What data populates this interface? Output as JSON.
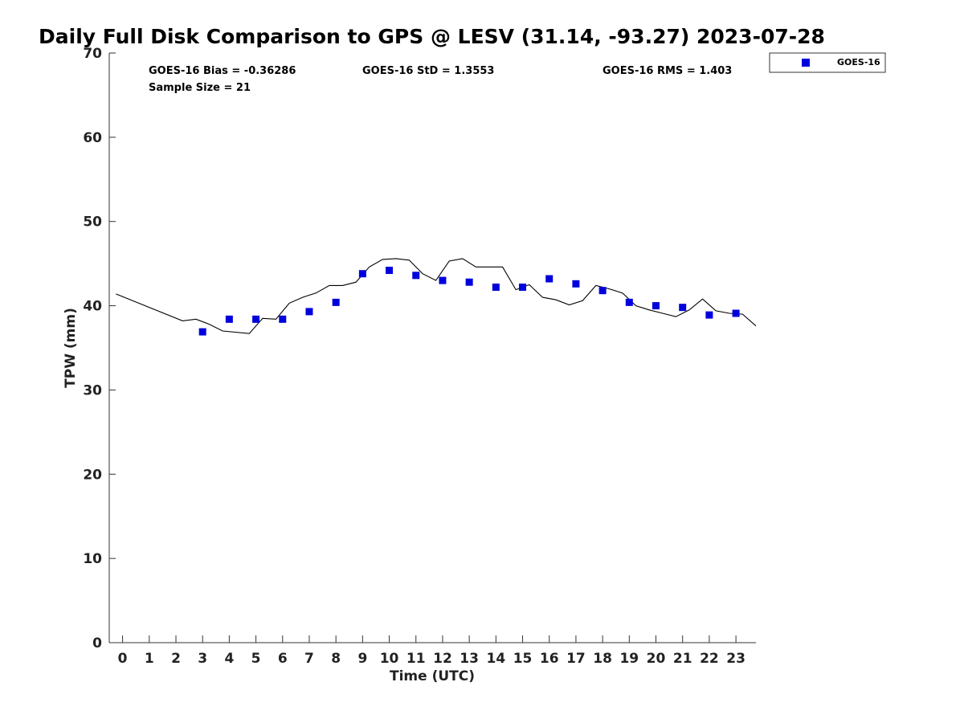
{
  "chart_data": {
    "type": "scatter",
    "title": "Daily Full Disk Comparison to GPS @ LESV (31.14, -93.27) 2023-07-28",
    "xlabel": "Time (UTC)",
    "ylabel": "TPW (mm)",
    "xlim": [
      -0.5,
      23.75
    ],
    "ylim": [
      0,
      70
    ],
    "x_ticks": [
      0,
      1,
      2,
      3,
      4,
      5,
      6,
      7,
      8,
      9,
      10,
      11,
      12,
      13,
      14,
      15,
      16,
      17,
      18,
      19,
      20,
      21,
      22,
      23
    ],
    "y_ticks": [
      0,
      10,
      20,
      30,
      40,
      50,
      60,
      70
    ],
    "stats": {
      "bias": "GOES-16 Bias = -0.36286",
      "std": "GOES-16 StD = 1.3553",
      "rms": "GOES-16 RMS = 1.403",
      "sample": "Sample Size = 21"
    },
    "legend": {
      "label": "GOES-16",
      "position": "top-right-outside"
    },
    "series": [
      {
        "name": "GOES-16",
        "kind": "marker",
        "color": "#0000dd",
        "x": [
          3,
          4,
          5,
          6,
          7,
          8,
          9,
          10,
          11,
          12,
          13,
          14,
          15,
          16,
          17,
          18,
          19,
          20,
          21,
          22,
          23
        ],
        "y": [
          36.9,
          38.4,
          38.4,
          38.4,
          39.3,
          40.4,
          43.8,
          44.2,
          43.6,
          43.0,
          42.8,
          42.2,
          42.2,
          43.2,
          42.6,
          41.8,
          40.4,
          40.0,
          39.8,
          38.9,
          39.1
        ]
      },
      {
        "name": "GPS",
        "kind": "line",
        "color": "#000000",
        "x": [
          -0.25,
          2.25,
          2.75,
          3.25,
          3.75,
          4.75,
          5.25,
          5.75,
          6.25,
          6.75,
          7.25,
          7.75,
          8.25,
          8.75,
          9.25,
          9.75,
          10.25,
          10.75,
          11.25,
          11.75,
          12.25,
          12.75,
          13.25,
          14.25,
          14.75,
          15.25,
          15.75,
          16.25,
          16.75,
          17.25,
          17.75,
          18.25,
          18.75,
          19.25,
          19.75,
          20.25,
          20.75,
          21.25,
          21.75,
          22.25,
          22.75,
          23.25,
          23.75
        ],
        "y": [
          41.4,
          38.2,
          38.4,
          37.8,
          37.0,
          36.7,
          38.5,
          38.4,
          40.3,
          41.0,
          41.5,
          42.4,
          42.4,
          42.8,
          44.6,
          45.5,
          45.6,
          45.4,
          43.8,
          43.0,
          45.3,
          45.6,
          44.6,
          44.6,
          41.9,
          42.5,
          41.0,
          40.7,
          40.1,
          40.6,
          42.4,
          42.0,
          41.5,
          40.0,
          39.5,
          39.1,
          38.7,
          39.5,
          40.8,
          39.4,
          39.1,
          39.0,
          37.6
        ]
      }
    ]
  }
}
